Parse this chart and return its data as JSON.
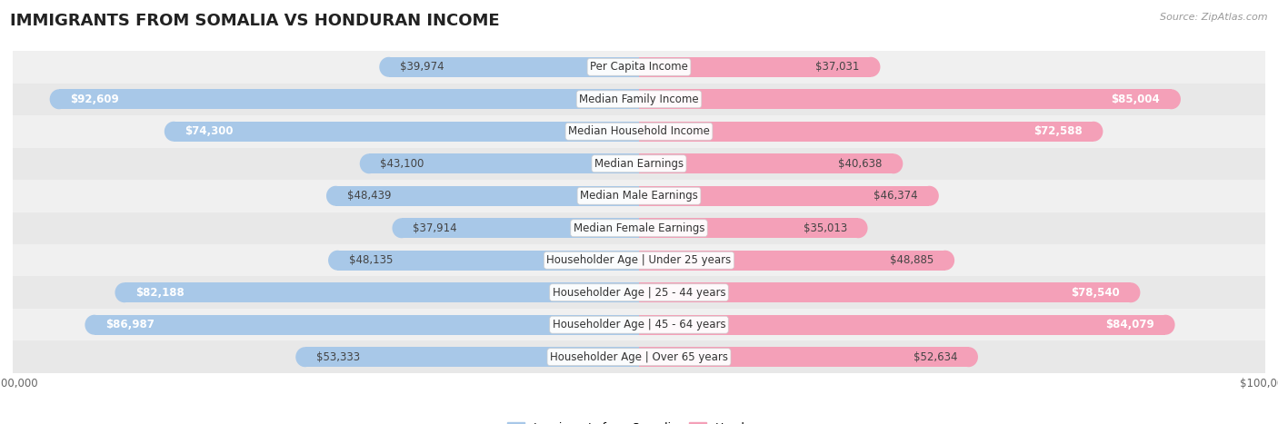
{
  "title": "IMMIGRANTS FROM SOMALIA VS HONDURAN INCOME",
  "source": "Source: ZipAtlas.com",
  "categories": [
    "Per Capita Income",
    "Median Family Income",
    "Median Household Income",
    "Median Earnings",
    "Median Male Earnings",
    "Median Female Earnings",
    "Householder Age | Under 25 years",
    "Householder Age | 25 - 44 years",
    "Householder Age | 45 - 64 years",
    "Householder Age | Over 65 years"
  ],
  "somalia_values": [
    39974,
    92609,
    74300,
    43100,
    48439,
    37914,
    48135,
    82188,
    86987,
    53333
  ],
  "honduran_values": [
    37031,
    85004,
    72588,
    40638,
    46374,
    35013,
    48885,
    78540,
    84079,
    52634
  ],
  "somalia_labels": [
    "$39,974",
    "$92,609",
    "$74,300",
    "$43,100",
    "$48,439",
    "$37,914",
    "$48,135",
    "$82,188",
    "$86,987",
    "$53,333"
  ],
  "honduran_labels": [
    "$37,031",
    "$85,004",
    "$72,588",
    "$40,638",
    "$46,374",
    "$35,013",
    "$48,885",
    "$78,540",
    "$84,079",
    "$52,634"
  ],
  "somalia_color": "#a8c8e8",
  "honduran_color": "#f4a0b8",
  "max_value": 100000,
  "background_color": "#ffffff",
  "row_bg_colors": [
    "#f0f0f0",
    "#e8e8e8"
  ],
  "bar_height": 0.62,
  "title_fontsize": 13,
  "label_fontsize": 8.5,
  "category_fontsize": 8.5,
  "tick_fontsize": 8.5,
  "legend_fontsize": 9,
  "inside_label_threshold": 55000,
  "label_padding": 1800
}
